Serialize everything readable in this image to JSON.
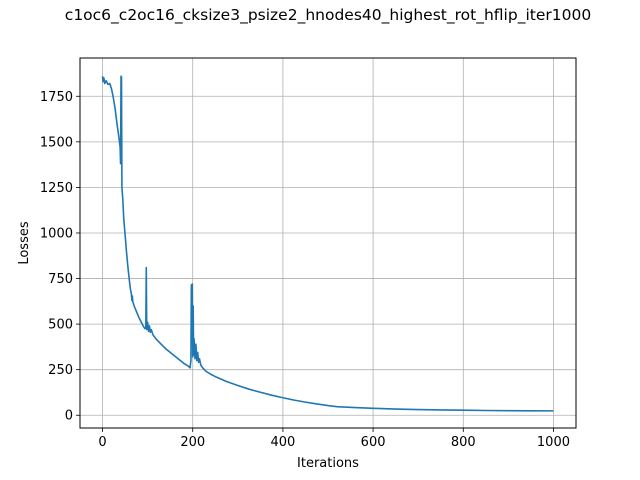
{
  "chart_data": {
    "type": "line",
    "title": "c1oc6_c2oc16_cksize3_psize2_hnodes40_highest_rot_hflip_iter1000",
    "xlabel": "Iterations",
    "ylabel": "Losses",
    "xlim": [
      -50,
      1050
    ],
    "ylim": [
      -70,
      1960
    ],
    "x_ticks": [
      0,
      200,
      400,
      600,
      800,
      1000
    ],
    "y_ticks": [
      0,
      250,
      500,
      750,
      1000,
      1250,
      1500,
      1750
    ],
    "grid": true,
    "line_color": "#1f77b4",
    "series": [
      {
        "points": [
          [
            0,
            1860
          ],
          [
            1,
            1830
          ],
          [
            3,
            1850
          ],
          [
            5,
            1820
          ],
          [
            8,
            1835
          ],
          [
            12,
            1815
          ],
          [
            16,
            1820
          ],
          [
            20,
            1790
          ],
          [
            24,
            1740
          ],
          [
            28,
            1680
          ],
          [
            32,
            1600
          ],
          [
            36,
            1530
          ],
          [
            39,
            1470
          ],
          [
            40,
            1380
          ],
          [
            41,
            1860
          ],
          [
            42,
            1855
          ],
          [
            43,
            1250
          ],
          [
            45,
            1180
          ],
          [
            47,
            1080
          ],
          [
            50,
            990
          ],
          [
            53,
            900
          ],
          [
            56,
            820
          ],
          [
            59,
            750
          ],
          [
            62,
            690
          ],
          [
            64,
            665
          ],
          [
            65,
            630
          ],
          [
            66,
            655
          ],
          [
            67,
            625
          ],
          [
            70,
            600
          ],
          [
            75,
            570
          ],
          [
            80,
            540
          ],
          [
            85,
            515
          ],
          [
            90,
            490
          ],
          [
            94,
            475
          ],
          [
            96,
            480
          ],
          [
            97,
            810
          ],
          [
            98,
            470
          ],
          [
            100,
            510
          ],
          [
            102,
            460
          ],
          [
            104,
            490
          ],
          [
            106,
            455
          ],
          [
            108,
            470
          ],
          [
            112,
            440
          ],
          [
            120,
            415
          ],
          [
            130,
            390
          ],
          [
            140,
            365
          ],
          [
            150,
            345
          ],
          [
            160,
            325
          ],
          [
            170,
            305
          ],
          [
            180,
            285
          ],
          [
            190,
            270
          ],
          [
            194,
            260
          ],
          [
            196,
            300
          ],
          [
            197,
            715
          ],
          [
            198,
            420
          ],
          [
            199,
            720
          ],
          [
            200,
            320
          ],
          [
            201,
            600
          ],
          [
            202,
            330
          ],
          [
            203,
            420
          ],
          [
            205,
            310
          ],
          [
            207,
            390
          ],
          [
            209,
            300
          ],
          [
            211,
            345
          ],
          [
            213,
            290
          ],
          [
            215,
            310
          ],
          [
            218,
            275
          ],
          [
            222,
            260
          ],
          [
            226,
            250
          ],
          [
            230,
            240
          ],
          [
            240,
            225
          ],
          [
            250,
            212
          ],
          [
            275,
            185
          ],
          [
            300,
            163
          ],
          [
            325,
            143
          ],
          [
            350,
            126
          ],
          [
            375,
            110
          ],
          [
            400,
            96
          ],
          [
            425,
            83
          ],
          [
            450,
            72
          ],
          [
            475,
            62
          ],
          [
            500,
            53
          ],
          [
            520,
            47
          ],
          [
            560,
            42
          ],
          [
            600,
            38
          ],
          [
            650,
            34
          ],
          [
            700,
            31
          ],
          [
            750,
            29
          ],
          [
            800,
            27.5
          ],
          [
            850,
            26
          ],
          [
            900,
            25
          ],
          [
            950,
            24.5
          ],
          [
            1000,
            24
          ]
        ]
      }
    ]
  }
}
